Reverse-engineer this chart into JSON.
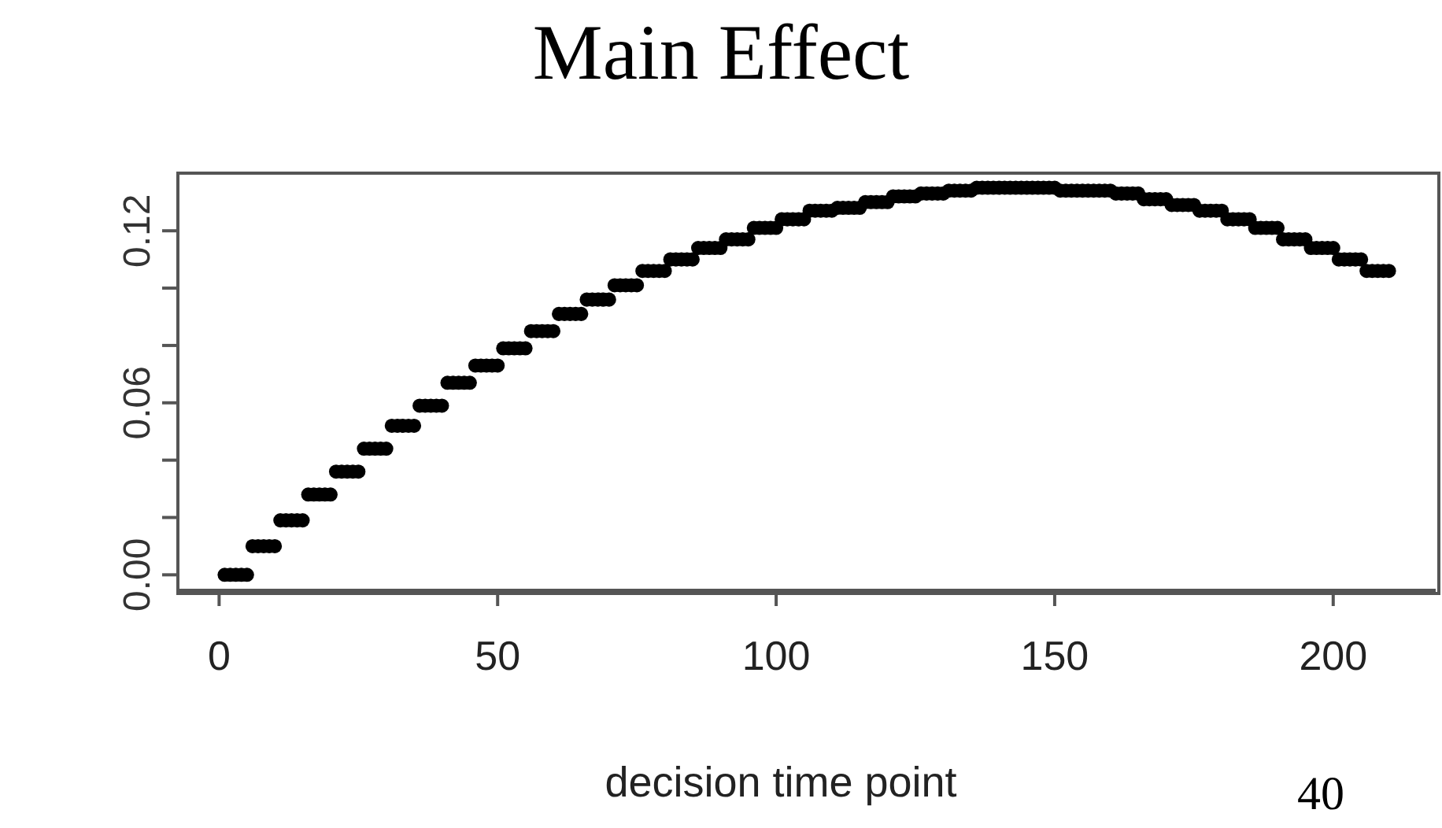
{
  "chart_data": {
    "type": "scatter",
    "title": "Main Effect",
    "xlabel": "decision time point",
    "annotations": [
      "40"
    ],
    "xlim": [
      -7.4,
      218.4
    ],
    "xticks": [
      0,
      50,
      100,
      150,
      200
    ],
    "ylim": [
      -0.0054,
      0.1401
    ],
    "yticks": [
      {
        "value": 0,
        "label": "0.00"
      },
      {
        "value": 0.02,
        "label": null
      },
      {
        "value": 0.04,
        "label": null
      },
      {
        "value": 0.06,
        "label": "0.06"
      },
      {
        "value": 0.08,
        "label": null
      },
      {
        "value": 0.1,
        "label": null
      },
      {
        "value": 0.12,
        "label": "0.12"
      }
    ],
    "grid": false,
    "legend": false,
    "marker": "circle",
    "series": [
      {
        "color": "#000000",
        "x": [
          1,
          2,
          3,
          4,
          5,
          6,
          7,
          8,
          9,
          10,
          11,
          12,
          13,
          14,
          15,
          16,
          17,
          18,
          19,
          20,
          21,
          22,
          23,
          24,
          25,
          26,
          27,
          28,
          29,
          30,
          31,
          32,
          33,
          34,
          35,
          36,
          37,
          38,
          39,
          40,
          41,
          42,
          43,
          44,
          45,
          46,
          47,
          48,
          49,
          50,
          51,
          52,
          53,
          54,
          55,
          56,
          57,
          58,
          59,
          60,
          61,
          62,
          63,
          64,
          65,
          66,
          67,
          68,
          69,
          70,
          71,
          72,
          73,
          74,
          75,
          76,
          77,
          78,
          79,
          80,
          81,
          82,
          83,
          84,
          85,
          86,
          87,
          88,
          89,
          90,
          91,
          92,
          93,
          94,
          95,
          96,
          97,
          98,
          99,
          100,
          101,
          102,
          103,
          104,
          105,
          106,
          107,
          108,
          109,
          110,
          111,
          112,
          113,
          114,
          115,
          116,
          117,
          118,
          119,
          120,
          121,
          122,
          123,
          124,
          125,
          126,
          127,
          128,
          129,
          130,
          131,
          132,
          133,
          134,
          135,
          136,
          137,
          138,
          139,
          140,
          141,
          142,
          143,
          144,
          145,
          146,
          147,
          148,
          149,
          150,
          151,
          152,
          153,
          154,
          155,
          156,
          157,
          158,
          159,
          160,
          161,
          162,
          163,
          164,
          165,
          166,
          167,
          168,
          169,
          170,
          171,
          172,
          173,
          174,
          175,
          176,
          177,
          178,
          179,
          180,
          181,
          182,
          183,
          184,
          185,
          186,
          187,
          188,
          189,
          190,
          191,
          192,
          193,
          194,
          195,
          196,
          197,
          198,
          199,
          200,
          201,
          202,
          203,
          204,
          205,
          206,
          207,
          208,
          209,
          210
        ],
        "values": [
          0,
          0,
          0,
          0,
          0,
          0.01,
          0.01,
          0.01,
          0.01,
          0.01,
          0.019,
          0.019,
          0.019,
          0.019,
          0.019,
          0.028,
          0.028,
          0.028,
          0.028,
          0.028,
          0.036,
          0.036,
          0.036,
          0.036,
          0.036,
          0.044,
          0.044,
          0.044,
          0.044,
          0.044,
          0.052,
          0.052,
          0.052,
          0.052,
          0.052,
          0.059,
          0.059,
          0.059,
          0.059,
          0.059,
          0.067,
          0.067,
          0.067,
          0.067,
          0.067,
          0.073,
          0.073,
          0.073,
          0.073,
          0.073,
          0.079,
          0.079,
          0.079,
          0.079,
          0.079,
          0.085,
          0.085,
          0.085,
          0.085,
          0.085,
          0.091,
          0.091,
          0.091,
          0.091,
          0.091,
          0.096,
          0.096,
          0.096,
          0.096,
          0.096,
          0.101,
          0.101,
          0.101,
          0.101,
          0.101,
          0.106,
          0.106,
          0.106,
          0.106,
          0.106,
          0.11,
          0.11,
          0.11,
          0.11,
          0.11,
          0.114,
          0.114,
          0.114,
          0.114,
          0.114,
          0.117,
          0.117,
          0.117,
          0.117,
          0.117,
          0.121,
          0.121,
          0.121,
          0.121,
          0.121,
          0.124,
          0.124,
          0.124,
          0.124,
          0.124,
          0.127,
          0.127,
          0.127,
          0.127,
          0.127,
          0.128,
          0.128,
          0.128,
          0.128,
          0.128,
          0.13,
          0.13,
          0.13,
          0.13,
          0.13,
          0.132,
          0.132,
          0.132,
          0.132,
          0.132,
          0.133,
          0.133,
          0.133,
          0.133,
          0.133,
          0.134,
          0.134,
          0.134,
          0.134,
          0.134,
          0.135,
          0.135,
          0.135,
          0.135,
          0.135,
          0.135,
          0.135,
          0.135,
          0.135,
          0.135,
          0.135,
          0.135,
          0.135,
          0.135,
          0.135,
          0.134,
          0.134,
          0.134,
          0.134,
          0.134,
          0.134,
          0.134,
          0.134,
          0.134,
          0.134,
          0.133,
          0.133,
          0.133,
          0.133,
          0.133,
          0.131,
          0.131,
          0.131,
          0.131,
          0.131,
          0.129,
          0.129,
          0.129,
          0.129,
          0.129,
          0.127,
          0.127,
          0.127,
          0.127,
          0.127,
          0.124,
          0.124,
          0.124,
          0.124,
          0.124,
          0.121,
          0.121,
          0.121,
          0.121,
          0.121,
          0.117,
          0.117,
          0.117,
          0.117,
          0.117,
          0.114,
          0.114,
          0.114,
          0.114,
          0.114,
          0.11,
          0.11,
          0.11,
          0.11,
          0.11,
          0.106,
          0.106,
          0.106,
          0.106,
          0.106
        ]
      }
    ]
  }
}
